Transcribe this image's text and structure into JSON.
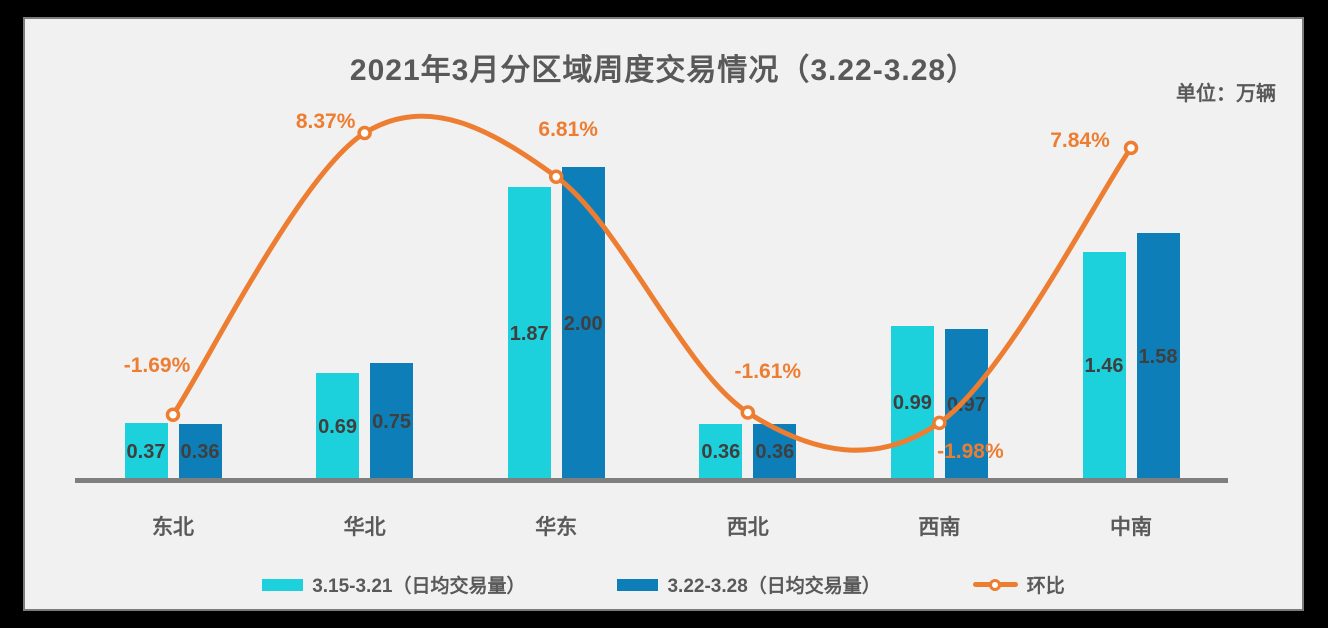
{
  "title": "2021年3月分区域周度交易情况（3.22-3.28）",
  "unit_label": "单位：万辆",
  "colors": {
    "series1": "#1CD1DC",
    "series2": "#0E7EB8",
    "line": "#ED7D31",
    "axis": "#7F7F7F",
    "value_label": "#3F3F3F",
    "text": "#595959",
    "panel_bg": "#F1F1F2",
    "frame_border": "#7C7C7C",
    "outer_bg": "#000000"
  },
  "legend": {
    "items": [
      {
        "label": "3.15-3.21（日均交易量）",
        "swatch": "series1"
      },
      {
        "label": "3.22-3.28（日均交易量）",
        "swatch": "series2"
      },
      {
        "label": "环比",
        "swatch": "line"
      }
    ]
  },
  "chart_data": {
    "type": "bar+line combo",
    "title": "2021年3月分区域周度交易情况（3.22-3.28）",
    "value_axis_unit": "万辆",
    "categories": [
      "东北",
      "华北",
      "华东",
      "西北",
      "西南",
      "中南"
    ],
    "series": [
      {
        "name": "3.15-3.21（日均交易量）",
        "type": "bar",
        "values": [
          0.37,
          0.69,
          1.87,
          0.36,
          0.99,
          1.46
        ],
        "labels": [
          "0.37",
          "0.69",
          "1.87",
          "0.36",
          "0.99",
          "1.46"
        ]
      },
      {
        "name": "3.22-3.28（日均交易量）",
        "type": "bar",
        "values": [
          0.36,
          0.75,
          2.0,
          0.36,
          0.97,
          1.58
        ],
        "labels": [
          "0.36",
          "0.75",
          "2.00",
          "0.36",
          "0.97",
          "1.58"
        ]
      },
      {
        "name": "环比",
        "type": "line",
        "unit": "%",
        "smooth": true,
        "values": [
          -1.69,
          8.37,
          6.81,
          -1.61,
          -1.98,
          7.84
        ],
        "labels": [
          "-1.69%",
          "8.37%",
          "6.81%",
          "-1.61%",
          "-1.98%",
          "7.84%"
        ]
      }
    ],
    "grid": false,
    "y_axis_visible": false,
    "legend_position": "bottom"
  }
}
